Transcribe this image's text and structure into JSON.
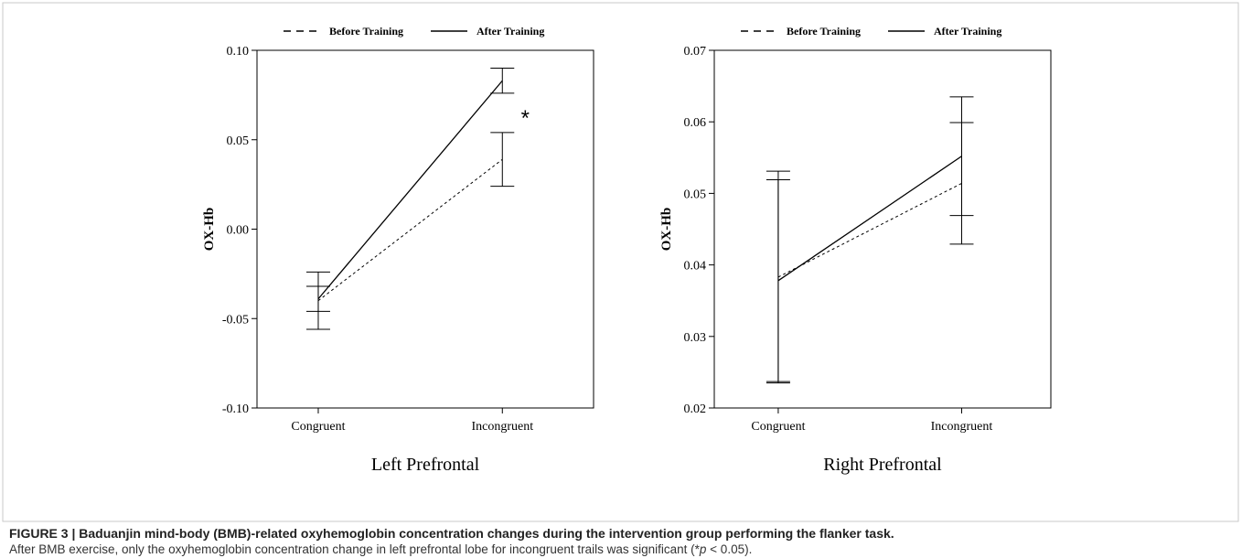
{
  "chart_data": [
    {
      "type": "line",
      "xlabel": "Left Prefrontal",
      "ylabel": "OX-Hb",
      "categories": [
        "Congruent",
        "Incongruent"
      ],
      "series": [
        {
          "name": "Before Training",
          "color": "#000000",
          "dash": "dashed",
          "values": [
            -0.04,
            0.039
          ],
          "errors": [
            0.016,
            0.015
          ]
        },
        {
          "name": "After Training",
          "color": "#000000",
          "dash": "solid",
          "values": [
            -0.039,
            0.083
          ],
          "errors": [
            0.007,
            0.007
          ]
        }
      ],
      "ylim": [
        -0.1,
        0.1
      ],
      "yticks": [
        {
          "value": -0.1,
          "label": "-0.10"
        },
        -0.05,
        {
          "value": 0,
          "label": "0.00"
        },
        0.05,
        {
          "value": 0.1,
          "label": "0.10"
        }
      ],
      "legend": "top",
      "annotations": [
        {
          "text": "*"
        }
      ]
    },
    {
      "type": "line",
      "xlabel": "Right Prefrontal",
      "ylabel": "OX-Hb",
      "categories": [
        "Congruent",
        "Incongruent"
      ],
      "series": [
        {
          "name": "Before Training",
          "color": "#000000",
          "dash": "dashed",
          "values": [
            0.0383,
            0.0514
          ],
          "errors": [
            0.0148,
            0.0085
          ]
        },
        {
          "name": "After Training",
          "color": "#000000",
          "dash": "solid",
          "values": [
            0.0378,
            0.0552
          ],
          "errors": [
            0.0141,
            0.0083
          ]
        }
      ],
      "ylim": [
        0.02,
        0.07
      ],
      "yticks": [
        0.02,
        0.03,
        0.04,
        0.05,
        0.06,
        0.07
      ],
      "legend": "top"
    }
  ],
  "caption": {
    "title": "FIGURE 3 | Baduanjin mind-body (BMB)-related oxyhemoglobin concentration changes during the intervention group performing the flanker task.",
    "body": [
      "After BMB exercise, only the oxyhemoglobin concentration change in left prefrontal lobe for incongruent trails was significant (*",
      "p",
      " < 0.05)."
    ]
  }
}
